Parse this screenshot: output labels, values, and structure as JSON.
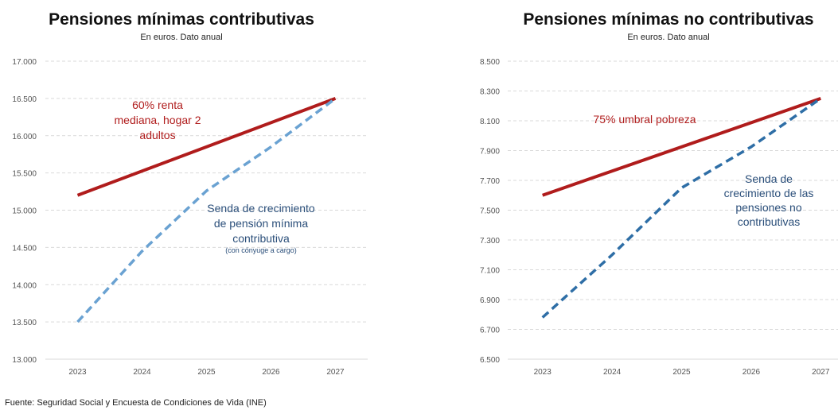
{
  "source": "Fuente: Seguridad Social y Encuesta de Condiciones de Vida (INE)",
  "chart_data": [
    {
      "type": "line",
      "title": "Pensiones mínimas contributivas",
      "subtitle": "En euros. Dato anual",
      "categories": [
        "2023",
        "2024",
        "2025",
        "2026",
        "2027"
      ],
      "ylim": [
        13000,
        17000
      ],
      "yticks": [
        13000,
        13500,
        14000,
        14500,
        15000,
        15500,
        16000,
        16500,
        17000
      ],
      "ytick_labels": [
        "13.000",
        "13.500",
        "14.000",
        "14.500",
        "15.000",
        "15.500",
        "16.000",
        "16.500",
        "17.000"
      ],
      "grid": true,
      "series": [
        {
          "values": [
            15200,
            null,
            null,
            null,
            16500
          ],
          "color": "#b01c1c",
          "style": "solid",
          "annotation": [
            "60% renta",
            "mediana, hogar 2",
            "adultos"
          ]
        },
        {
          "values": [
            13500,
            14450,
            15260,
            15850,
            16500
          ],
          "color": "#6aa2d2",
          "style": "dashed",
          "annotation": [
            "Senda de crecimiento",
            "de pensión mínima",
            "contributiva"
          ],
          "annotation_note": "(con cónyuge a cargo)"
        }
      ]
    },
    {
      "type": "line",
      "title": "Pensiones mínimas no contributivas",
      "subtitle": "En euros. Dato anual",
      "categories": [
        "2023",
        "2024",
        "2025",
        "2026",
        "2027"
      ],
      "ylim": [
        6500,
        8500
      ],
      "yticks": [
        6500,
        6700,
        6900,
        7100,
        7300,
        7500,
        7700,
        7900,
        8100,
        8300,
        8500
      ],
      "ytick_labels": [
        "6.500",
        "6.700",
        "6.900",
        "7.100",
        "7.300",
        "7.500",
        "7.700",
        "7.900",
        "8.100",
        "8.300",
        "8.500"
      ],
      "grid": true,
      "series": [
        {
          "values": [
            7600,
            null,
            null,
            null,
            8250
          ],
          "color": "#b01c1c",
          "style": "solid",
          "annotation": [
            "75% umbral pobreza"
          ]
        },
        {
          "values": [
            6780,
            7200,
            7650,
            7925,
            8250
          ],
          "color": "#2e6ea6",
          "style": "dashed",
          "annotation": [
            "Senda de",
            "crecimiento de las",
            "pensiones no",
            "contributivas"
          ]
        }
      ]
    }
  ]
}
